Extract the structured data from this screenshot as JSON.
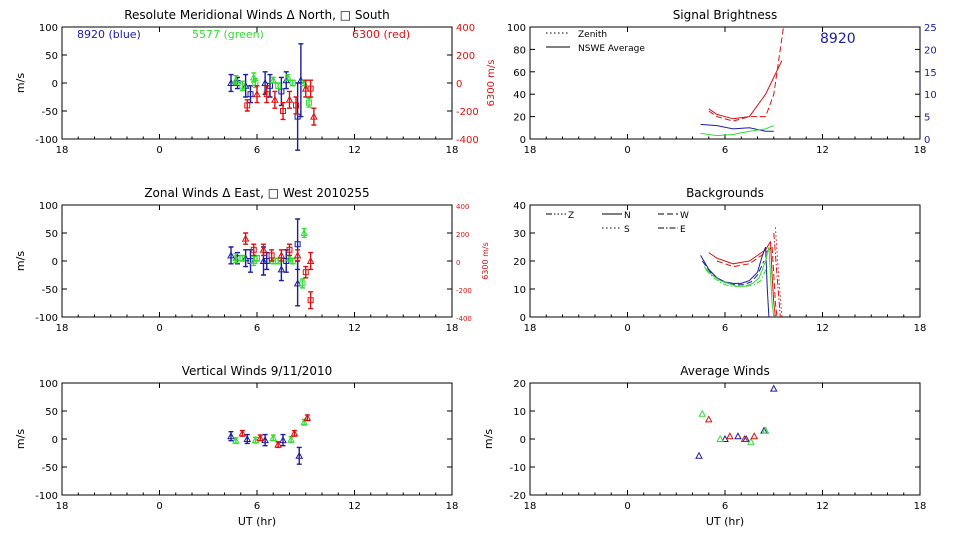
{
  "colors": {
    "blue": "#1c1ca0",
    "green": "#33dd33",
    "red": "#dd1111",
    "axis": "#000000"
  },
  "chart_data": [
    {
      "id": "meridional",
      "type": "scatter",
      "title": "Resolute Meridional Winds Δ North, □ South",
      "ylabel": "m/s",
      "y2label": "6300 m/s",
      "labels": [
        {
          "text": "8920 (blue)",
          "color": "blue"
        },
        {
          "text": "5577 (green)",
          "color": "green"
        },
        {
          "text": "6300 (red)",
          "color": "red"
        }
      ],
      "xlim": [
        18,
        42
      ],
      "xticks": [
        18,
        24,
        30,
        36,
        42
      ],
      "xticklabels": [
        "18",
        "0",
        "6",
        "12",
        "18"
      ],
      "ylim": [
        -100,
        100
      ],
      "yticks": [
        -100,
        -50,
        0,
        50,
        100
      ],
      "y2lim": [
        -400,
        400
      ],
      "y2ticks": [
        -400,
        -200,
        0,
        200,
        400
      ],
      "series": [
        {
          "color": "blue",
          "marker": "triangle",
          "points": [
            [
              28.4,
              0,
              15
            ],
            [
              29.3,
              -5,
              20
            ],
            [
              30.5,
              0,
              20
            ],
            [
              31.8,
              5,
              15
            ],
            [
              32.7,
              5,
              65
            ]
          ]
        },
        {
          "color": "blue",
          "marker": "square",
          "points": [
            [
              28.8,
              0,
              10
            ],
            [
              29.6,
              -20,
              15
            ],
            [
              30.8,
              -5,
              20
            ],
            [
              31.5,
              -15,
              25
            ],
            [
              32.5,
              -60,
              60
            ]
          ]
        },
        {
          "color": "green",
          "marker": "triangle",
          "points": [
            [
              28.7,
              5,
              8
            ],
            [
              29.8,
              10,
              8
            ],
            [
              31.0,
              5,
              5
            ],
            [
              31.9,
              10,
              5
            ],
            [
              32.9,
              0,
              5
            ]
          ]
        },
        {
          "color": "green",
          "marker": "square",
          "points": [
            [
              29.1,
              -5,
              8
            ],
            [
              29.9,
              0,
              8
            ],
            [
              31.3,
              -5,
              5
            ],
            [
              32.2,
              0,
              5
            ],
            [
              33.2,
              -35,
              8
            ]
          ]
        },
        {
          "color": "red",
          "marker": "triangle",
          "points": [
            [
              30.0,
              -20,
              15
            ],
            [
              31.1,
              -30,
              15
            ],
            [
              32.0,
              -30,
              15
            ],
            [
              33.0,
              -10,
              15
            ],
            [
              33.5,
              -60,
              15
            ]
          ]
        },
        {
          "color": "red",
          "marker": "square",
          "points": [
            [
              29.4,
              -40,
              10
            ],
            [
              30.6,
              -20,
              15
            ],
            [
              31.6,
              -50,
              15
            ],
            [
              32.4,
              -40,
              15
            ],
            [
              33.3,
              -10,
              15
            ]
          ]
        }
      ]
    },
    {
      "id": "brightness",
      "type": "line",
      "title": "Signal Brightness",
      "annotation": {
        "text": "8920",
        "color": "blue"
      },
      "legend": [
        {
          "style": "dotted",
          "label": "Zenith"
        },
        {
          "style": "solid",
          "label": "NSWE Average"
        }
      ],
      "xlim": [
        18,
        42
      ],
      "xticks": [
        18,
        24,
        30,
        36,
        42
      ],
      "xticklabels": [
        "18",
        "0",
        "6",
        "12",
        "18"
      ],
      "ylim": [
        0,
        100
      ],
      "yticks": [
        0,
        20,
        40,
        60,
        80,
        100
      ],
      "y2lim": [
        0,
        25
      ],
      "y2ticks": [
        0,
        5,
        10,
        15,
        20,
        25
      ],
      "series": [
        {
          "color": "red",
          "style": "solid",
          "x": [
            29.0,
            29.5,
            30.5,
            31.5,
            32.5,
            33.5
          ],
          "y": [
            27,
            22,
            18,
            20,
            40,
            70
          ]
        },
        {
          "color": "red",
          "style": "dashed",
          "x": [
            29.0,
            29.5,
            30.5,
            31.5,
            32.5,
            33.0,
            33.6
          ],
          "y": [
            25,
            20,
            16,
            20,
            20,
            40,
            100
          ]
        },
        {
          "color": "blue",
          "style": "solid",
          "x": [
            28.5,
            29.5,
            30.5,
            31.5,
            32.5,
            33.0
          ],
          "y": [
            13,
            12,
            9,
            10,
            7,
            7
          ]
        },
        {
          "color": "green",
          "style": "solid",
          "x": [
            28.5,
            29.5,
            30.5,
            31.5,
            32.5,
            33.0
          ],
          "y": [
            5,
            3,
            4,
            7,
            9,
            12
          ]
        }
      ]
    },
    {
      "id": "zonal",
      "type": "scatter",
      "title": "Zonal Winds Δ East, □ West 2010255",
      "ylabel": "m/s",
      "y2label": "6300 m/s",
      "xlim": [
        18,
        42
      ],
      "xticks": [
        18,
        24,
        30,
        36,
        42
      ],
      "xticklabels": [
        "18",
        "0",
        "6",
        "12",
        "18"
      ],
      "ylim": [
        -100,
        100
      ],
      "yticks": [
        -100,
        -50,
        0,
        50,
        100
      ],
      "y2lim": [
        -400,
        400
      ],
      "y2ticks": [
        -400,
        -200,
        0,
        200,
        400
      ],
      "series": [
        {
          "color": "blue",
          "marker": "triangle",
          "points": [
            [
              28.4,
              10,
              15
            ],
            [
              29.3,
              5,
              15
            ],
            [
              30.4,
              0,
              25
            ],
            [
              31.5,
              -15,
              20
            ],
            [
              32.5,
              -40,
              40
            ]
          ]
        },
        {
          "color": "blue",
          "marker": "square",
          "points": [
            [
              28.8,
              5,
              10
            ],
            [
              29.6,
              0,
              20
            ],
            [
              30.6,
              0,
              15
            ],
            [
              31.8,
              0,
              20
            ],
            [
              32.5,
              30,
              45
            ]
          ]
        },
        {
          "color": "green",
          "marker": "triangle",
          "points": [
            [
              28.7,
              5,
              8
            ],
            [
              29.8,
              0,
              8
            ],
            [
              31.0,
              0,
              5
            ],
            [
              32.0,
              5,
              5
            ],
            [
              32.9,
              50,
              8
            ]
          ]
        },
        {
          "color": "green",
          "marker": "square",
          "points": [
            [
              29.1,
              5,
              5
            ],
            [
              30.0,
              5,
              5
            ],
            [
              31.3,
              0,
              5
            ],
            [
              32.2,
              0,
              5
            ],
            [
              32.8,
              -40,
              8
            ]
          ]
        },
        {
          "color": "red",
          "marker": "triangle",
          "points": [
            [
              29.3,
              40,
              10
            ],
            [
              30.4,
              20,
              10
            ],
            [
              31.5,
              10,
              10
            ],
            [
              32.5,
              10,
              10
            ],
            [
              33.3,
              0,
              15
            ]
          ]
        },
        {
          "color": "red",
          "marker": "square",
          "points": [
            [
              29.8,
              20,
              10
            ],
            [
              30.9,
              10,
              10
            ],
            [
              32.0,
              20,
              10
            ],
            [
              33.0,
              -20,
              10
            ],
            [
              33.3,
              -70,
              15
            ]
          ]
        }
      ]
    },
    {
      "id": "backgrounds",
      "type": "line",
      "title": "Backgrounds",
      "legend": [
        {
          "style": "dashdot3",
          "label": "Z"
        },
        {
          "style": "solid",
          "label": "N"
        },
        {
          "style": "dashed",
          "label": "W"
        },
        {
          "style": "dotted",
          "label": "S"
        },
        {
          "style": "dashdot",
          "label": "E"
        }
      ],
      "xlim": [
        18,
        42
      ],
      "xticks": [
        18,
        24,
        30,
        36,
        42
      ],
      "xticklabels": [
        "18",
        "0",
        "6",
        "12",
        "18"
      ],
      "ylim": [
        0,
        40
      ],
      "yticks": [
        0,
        10,
        20,
        30,
        40
      ],
      "series": [
        {
          "color": "red",
          "style": "solid",
          "x": [
            29.0,
            29.5,
            30.0,
            30.5,
            31.0,
            31.5,
            32.0,
            32.5,
            32.8
          ],
          "y": [
            23,
            21,
            20,
            19,
            19.5,
            20,
            22,
            24,
            27
          ]
        },
        {
          "color": "red",
          "style": "dashed",
          "x": [
            29.5,
            30.0,
            30.5,
            31.0,
            31.5,
            32.0,
            32.5,
            32.9
          ],
          "y": [
            20,
            19,
            18,
            18.5,
            19,
            21,
            23,
            25
          ]
        },
        {
          "color": "red",
          "style": "solid",
          "x": [
            32.8,
            32.9,
            33.0,
            33.1
          ],
          "y": [
            27,
            15,
            5,
            0
          ]
        },
        {
          "color": "red",
          "style": "dashed",
          "x": [
            32.9,
            33.0,
            33.1,
            33.2,
            33.3
          ],
          "y": [
            25,
            15,
            5,
            0,
            0
          ]
        },
        {
          "color": "red",
          "style": "dashdot",
          "x": [
            33.0,
            33.2,
            33.4
          ],
          "y": [
            30,
            15,
            0
          ]
        },
        {
          "color": "red",
          "style": "dotted",
          "x": [
            33.1,
            33.3,
            33.5
          ],
          "y": [
            32,
            15,
            0
          ]
        },
        {
          "color": "blue",
          "style": "solid",
          "x": [
            28.5,
            29.0,
            29.5,
            30.0,
            30.5,
            31.0,
            31.5,
            32.0,
            32.3,
            32.5
          ],
          "y": [
            22,
            17,
            14,
            12.5,
            12,
            12,
            13,
            16,
            22,
            25
          ]
        },
        {
          "color": "blue",
          "style": "dashed",
          "x": [
            28.6,
            29.1,
            29.6,
            30.1,
            30.6,
            31.1,
            31.6,
            32.0,
            32.4
          ],
          "y": [
            20,
            16,
            13.5,
            12,
            11.5,
            11.5,
            12.5,
            15,
            20
          ]
        },
        {
          "color": "blue",
          "style": "solid",
          "x": [
            32.5,
            32.6,
            32.7
          ],
          "y": [
            25,
            10,
            0
          ]
        },
        {
          "color": "green",
          "style": "solid",
          "x": [
            28.7,
            29.2,
            29.7,
            30.2,
            30.7,
            31.2,
            31.7,
            32.1,
            32.5,
            32.7
          ],
          "y": [
            18,
            15,
            13,
            12,
            11,
            11,
            12,
            14,
            20,
            25
          ]
        },
        {
          "color": "green",
          "style": "dashdot",
          "x": [
            28.8,
            29.3,
            29.8,
            30.3,
            30.8,
            31.3,
            31.8,
            32.2,
            32.6
          ],
          "y": [
            17,
            14,
            12,
            11,
            11,
            11,
            11.5,
            13,
            18
          ]
        },
        {
          "color": "green",
          "style": "solid",
          "x": [
            32.7,
            32.8,
            32.9,
            33.0
          ],
          "y": [
            25,
            15,
            5,
            0
          ]
        }
      ]
    },
    {
      "id": "vertical",
      "type": "scatter",
      "title": "Vertical Winds 9/11/2010",
      "ylabel": "m/s",
      "xlabel": "UT (hr)",
      "xlim": [
        18,
        42
      ],
      "xticks": [
        18,
        24,
        30,
        36,
        42
      ],
      "xticklabels": [
        "18",
        "0",
        "6",
        "12",
        "18"
      ],
      "ylim": [
        -100,
        100
      ],
      "yticks": [
        -100,
        -50,
        0,
        50,
        100
      ],
      "series": [
        {
          "color": "blue",
          "marker": "triangle",
          "points": [
            [
              28.4,
              5,
              8
            ],
            [
              29.4,
              0,
              8
            ],
            [
              30.5,
              -2,
              10
            ],
            [
              31.6,
              -2,
              10
            ],
            [
              32.6,
              -30,
              15
            ]
          ]
        },
        {
          "color": "green",
          "marker": "triangle",
          "points": [
            [
              28.7,
              -3,
              5
            ],
            [
              29.9,
              -2,
              5
            ],
            [
              31.0,
              2,
              5
            ],
            [
              32.1,
              -1,
              5
            ],
            [
              32.9,
              30,
              5
            ]
          ]
        },
        {
          "color": "red",
          "marker": "triangle",
          "points": [
            [
              29.1,
              10,
              5
            ],
            [
              30.2,
              2,
              5
            ],
            [
              31.3,
              -10,
              5
            ],
            [
              32.3,
              10,
              5
            ],
            [
              33.1,
              38,
              5
            ]
          ]
        }
      ]
    },
    {
      "id": "average",
      "type": "scatter",
      "title": "Average Winds",
      "ylabel": "m/s",
      "xlabel": "UT (hr)",
      "xlim": [
        18,
        42
      ],
      "xticks": [
        18,
        24,
        30,
        36,
        42
      ],
      "xticklabels": [
        "18",
        "0",
        "6",
        "12",
        "18"
      ],
      "ylim": [
        -20,
        20
      ],
      "yticks": [
        -20,
        -10,
        0,
        10,
        20
      ],
      "series": [
        {
          "color": "blue",
          "marker": "triangle",
          "points": [
            [
              28.4,
              -6,
              0
            ],
            [
              30.0,
              0,
              0
            ],
            [
              30.8,
              1,
              0
            ],
            [
              31.3,
              0,
              0
            ],
            [
              32.4,
              3,
              0
            ],
            [
              33.0,
              18,
              0
            ]
          ]
        },
        {
          "color": "green",
          "marker": "triangle",
          "points": [
            [
              28.6,
              9,
              0
            ],
            [
              29.7,
              0,
              0
            ],
            [
              31.6,
              -1,
              0
            ],
            [
              32.5,
              3,
              0
            ]
          ]
        },
        {
          "color": "red",
          "marker": "triangle",
          "points": [
            [
              29.0,
              7,
              0
            ],
            [
              30.3,
              1,
              0
            ],
            [
              31.2,
              0,
              0
            ],
            [
              31.8,
              1,
              0
            ]
          ]
        }
      ]
    }
  ]
}
